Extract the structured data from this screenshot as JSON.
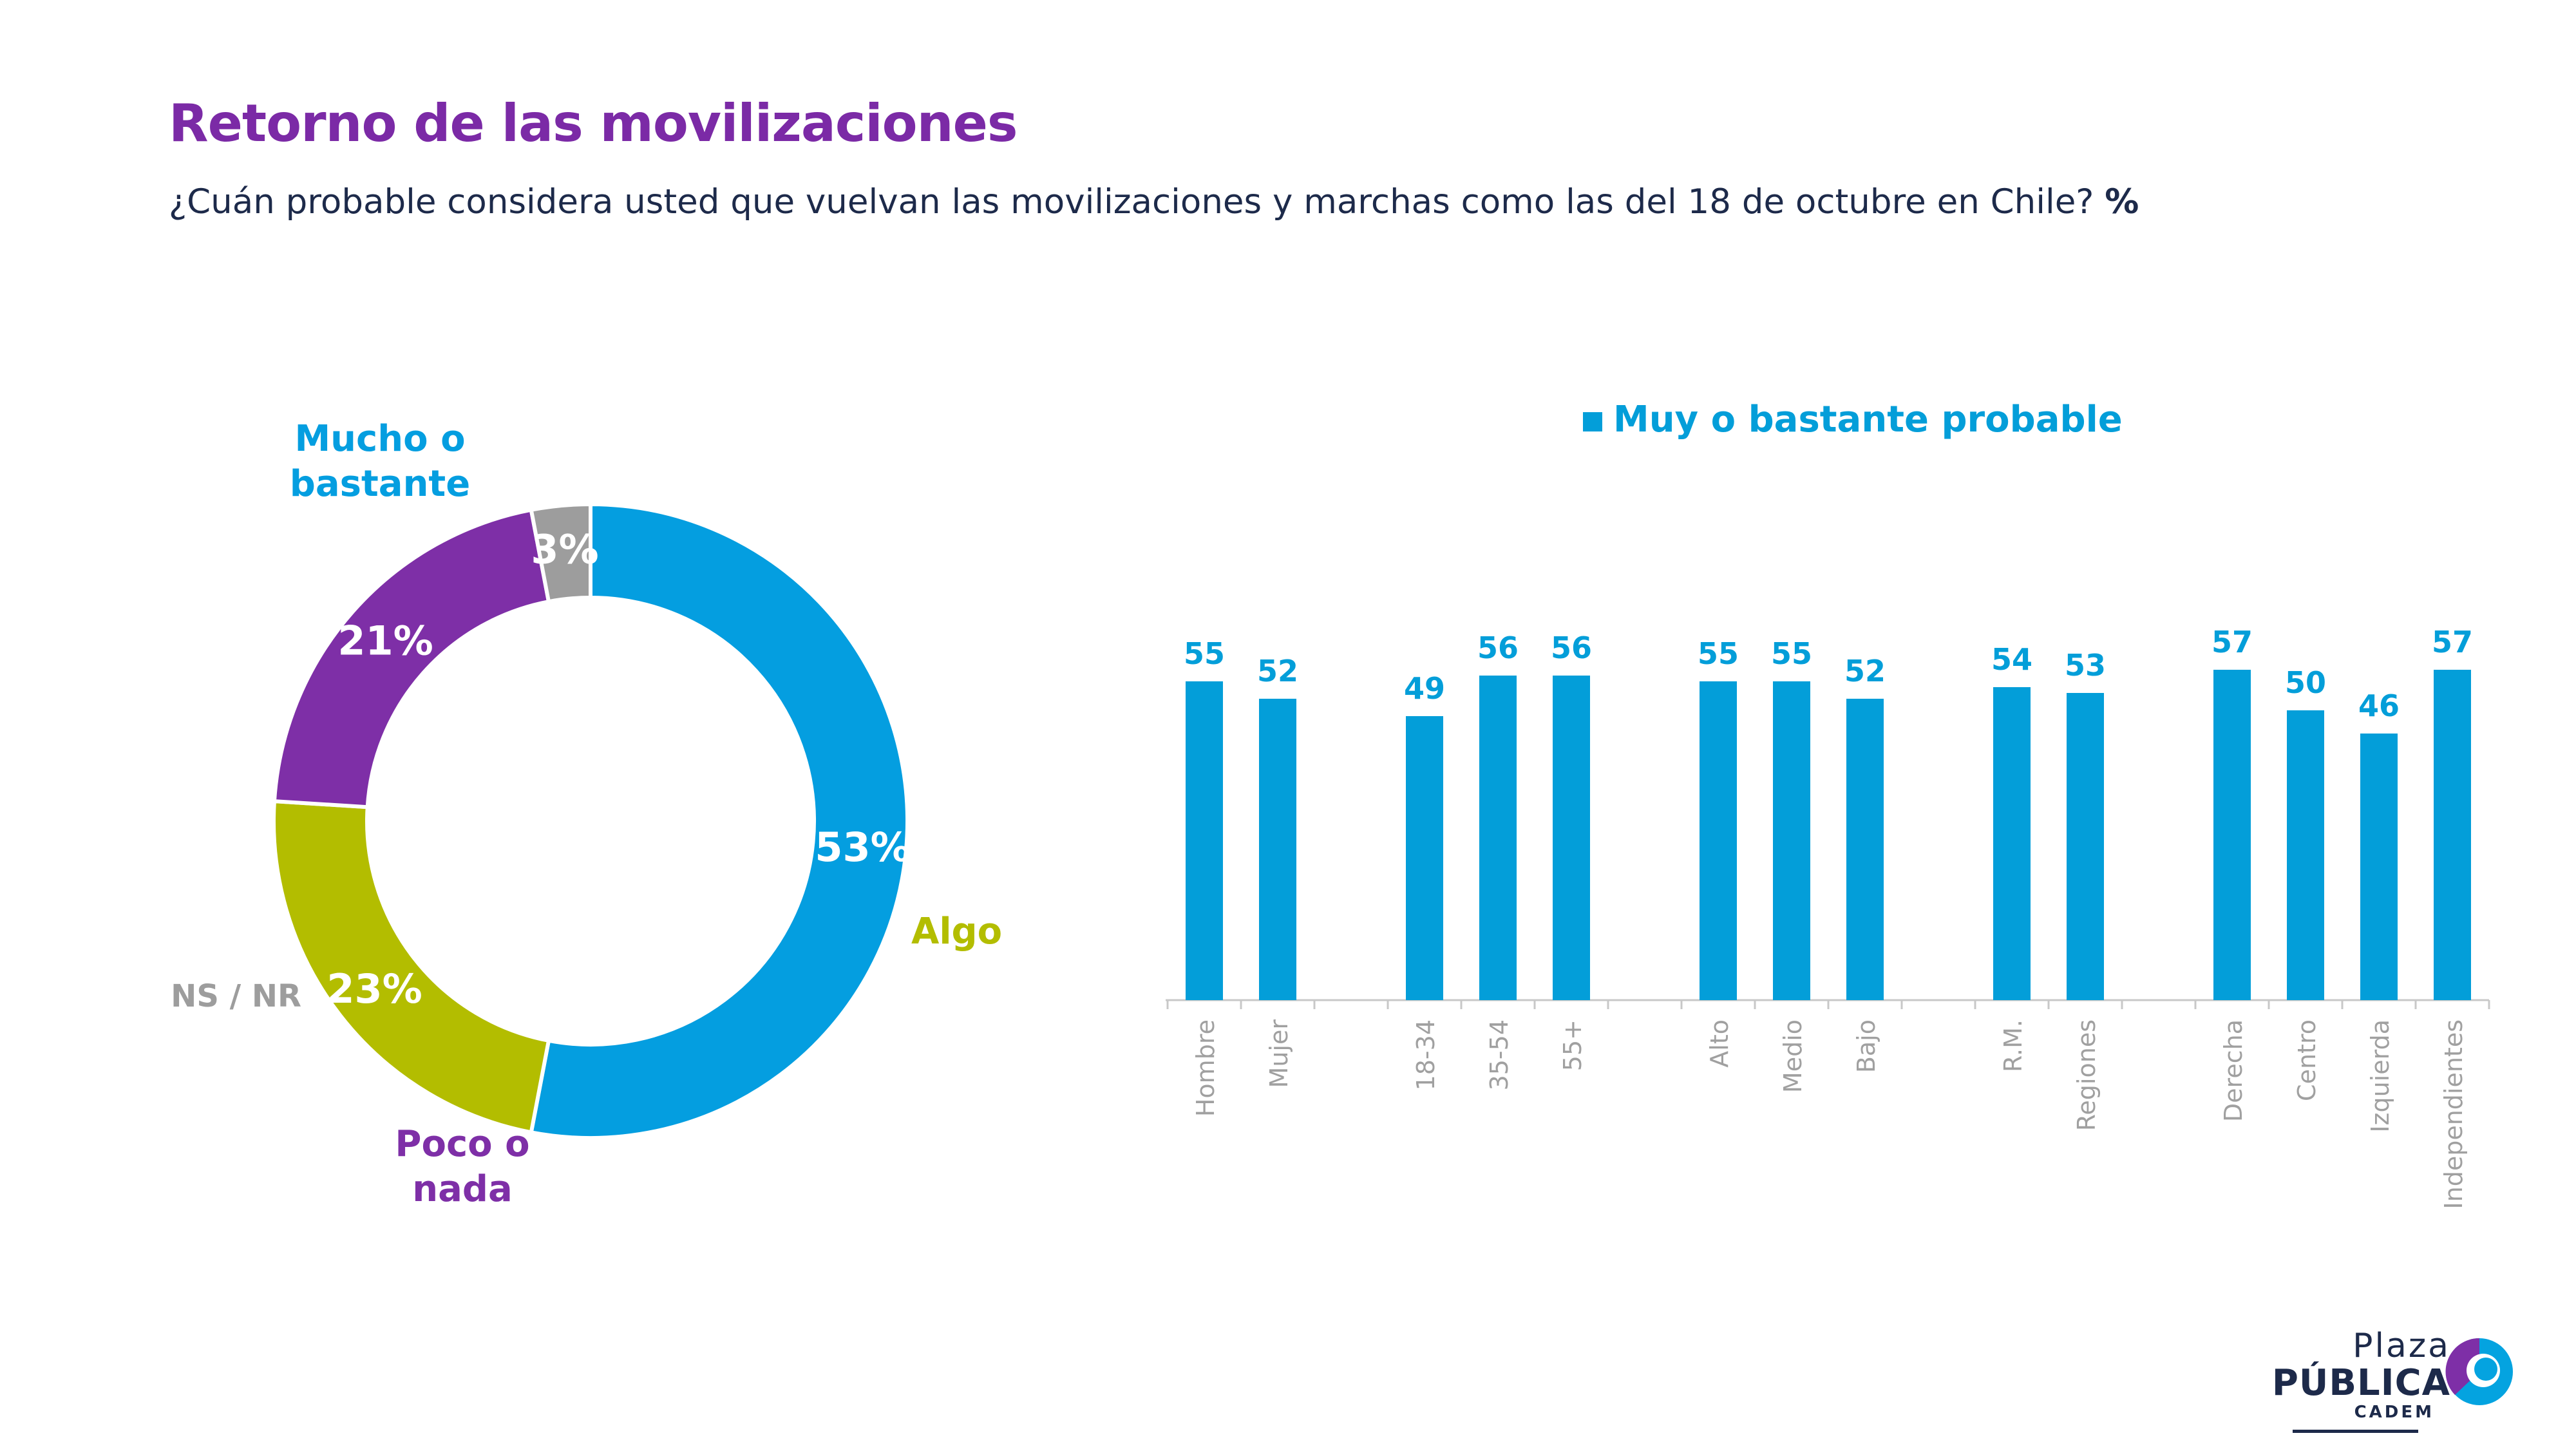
{
  "title": "Retorno de las movilizaciones",
  "subtitle": "¿Cuán probable considera usted que vuelvan las movilizaciones y marchas como las del 18 de octubre en Chile?",
  "subtitle_unit": "%",
  "colors": {
    "title": "#7b2aa6",
    "text": "#1d2a4a",
    "bar": "#039ed9",
    "mucho": "#049ee0",
    "algo": "#b3bd00",
    "poco": "#7e2fa7",
    "nsnr": "#9d9d9d",
    "axis_label": "#a0a0a0"
  },
  "logo": {
    "line1": "Plaza",
    "line2": "PÚBLICA",
    "line3": "CADEM"
  },
  "chart_data": [
    {
      "type": "pie",
      "variant": "donut",
      "slices": [
        {
          "label": "Mucho o bastante",
          "label_lines": [
            "Mucho o",
            "bastante"
          ],
          "value": 53,
          "value_label": "53%",
          "color": "#049ee0"
        },
        {
          "label": "Algo",
          "label_lines": [
            "Algo"
          ],
          "value": 23,
          "value_label": "23%",
          "color": "#b3bd00"
        },
        {
          "label": "Poco o nada",
          "label_lines": [
            "Poco o",
            "nada"
          ],
          "value": 21,
          "value_label": "21%",
          "color": "#7e2fa7"
        },
        {
          "label": "NS / NR",
          "label_lines": [
            "NS / NR"
          ],
          "value": 3,
          "value_label": "3%",
          "color": "#9d9d9d"
        }
      ]
    },
    {
      "type": "bar",
      "legend": "Muy o bastante probable",
      "legend_position": "top",
      "groups": [
        {
          "categories": [
            "Hombre",
            "Mujer"
          ],
          "values": [
            55,
            52
          ]
        },
        {
          "categories": [
            "18-34",
            "35-54",
            "55+"
          ],
          "values": [
            49,
            56,
            56
          ]
        },
        {
          "categories": [
            "Alto",
            "Medio",
            "Bajo"
          ],
          "values": [
            55,
            55,
            52
          ]
        },
        {
          "categories": [
            "R.M.",
            "Regiones"
          ],
          "values": [
            54,
            53
          ]
        },
        {
          "categories": [
            "Derecha",
            "Centro",
            "Izquierda",
            "Independientes"
          ],
          "values": [
            57,
            50,
            46,
            57
          ]
        }
      ],
      "ylim": [
        0,
        57
      ],
      "grid": false
    }
  ]
}
